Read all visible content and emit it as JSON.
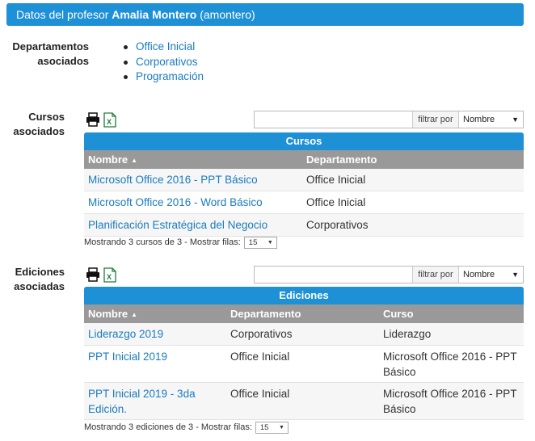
{
  "header": {
    "prefix": "Datos del profesor",
    "name": "Amalia Montero",
    "username": "(amontero)"
  },
  "departamentos": {
    "label_line1": "Departamentos",
    "label_line2": "asociados",
    "items": [
      "Office Inicial",
      "Corporativos",
      "Programación"
    ]
  },
  "cursos": {
    "label_line1": "Cursos",
    "label_line2": "asociados",
    "filter_label": "filtrar por",
    "filter_value": "",
    "filter_select": "Nombre",
    "caption": "Cursos",
    "columns": [
      "Nombre",
      "Departamento"
    ],
    "rows": [
      {
        "nombre": "Microsoft Office 2016 - PPT Básico",
        "departamento": "Office Inicial"
      },
      {
        "nombre": "Microsoft Office 2016 - Word Básico",
        "departamento": "Office Inicial"
      },
      {
        "nombre": "Planificación Estratégica del Negocio",
        "departamento": "Corporativos"
      }
    ],
    "footer_text": "Mostrando 3 cursos de 3 - Mostrar filas:",
    "rows_per_page": "15"
  },
  "ediciones": {
    "label_line1": "Ediciones",
    "label_line2": "asociadas",
    "filter_label": "filtrar por",
    "filter_value": "",
    "filter_select": "Nombre",
    "caption": "Ediciones",
    "columns": [
      "Nombre",
      "Departamento",
      "Curso"
    ],
    "rows": [
      {
        "nombre_l1": "Liderazgo 2019",
        "nombre_l2": "",
        "departamento": "Corporativos",
        "curso_l1": "Liderazgo",
        "curso_l2": ""
      },
      {
        "nombre_l1": "PPT Inicial 2019",
        "nombre_l2": "",
        "departamento": "Office Inicial",
        "curso_l1": "Microsoft Office 2016 - PPT",
        "curso_l2": "Básico"
      },
      {
        "nombre_l1": "PPT Inicial 2019 - 3da",
        "nombre_l2": "Edición.",
        "departamento": "Office Inicial",
        "curso_l1": "Microsoft Office 2016 - PPT",
        "curso_l2": "Básico"
      }
    ],
    "footer_text": "Mostrando 3 ediciones de 3 - Mostrar filas:",
    "rows_per_page": "15"
  },
  "colors": {
    "accent": "#1e90d6",
    "header_gray": "#999999",
    "link": "#1a7bbf",
    "excel_green": "#1e7a3c"
  },
  "icons": [
    "print-icon",
    "excel-icon",
    "sort-asc-icon",
    "chevron-down-icon"
  ]
}
